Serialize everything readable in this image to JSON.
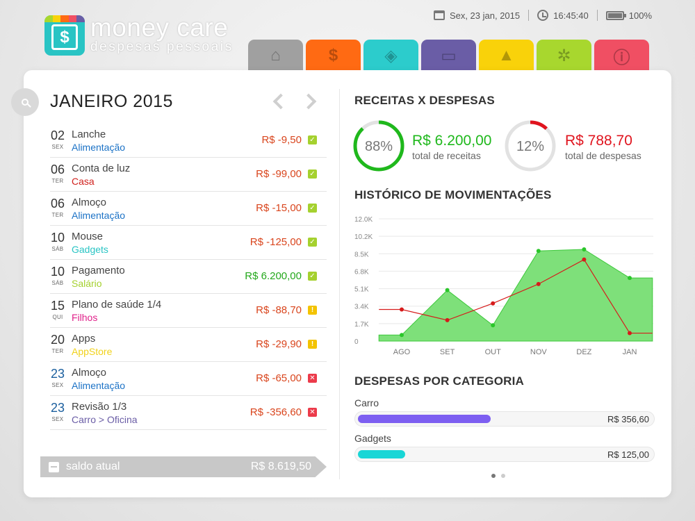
{
  "app": {
    "title": "money care",
    "subtitle": "despesas pessoais",
    "logo_symbol": "$"
  },
  "status": {
    "date": "Sex, 23 jan, 2015",
    "time": "16:45:40",
    "battery": "100%"
  },
  "tabs": [
    {
      "icon": "home-icon",
      "glyph": "⌂",
      "color": "#a0a0a0"
    },
    {
      "icon": "dollar-icon",
      "glyph": "$",
      "color": "#ff6a13"
    },
    {
      "icon": "tag-icon",
      "glyph": "◈",
      "color": "#2ccccc"
    },
    {
      "icon": "archive-icon",
      "glyph": "▭",
      "color": "#6a5da6"
    },
    {
      "icon": "chart-icon",
      "glyph": "▲",
      "color": "#f9d20a"
    },
    {
      "icon": "gear-icon",
      "glyph": "✲",
      "color": "#a8d72e"
    },
    {
      "icon": "info-icon",
      "glyph": "ⓘ",
      "color": "#f04f63"
    }
  ],
  "month": {
    "title": "JANEIRO 2015"
  },
  "transactions": [
    {
      "day": "02",
      "weekday": "SEX",
      "desc": "Lanche",
      "category": "Alimentação",
      "cat_color": "#1b72c6",
      "amount": "R$ -9,50",
      "amt_color": "#d9451d",
      "status": "✓",
      "status_color": "#a5d12f",
      "day_color": "#333"
    },
    {
      "day": "06",
      "weekday": "TER",
      "desc": "Conta de luz",
      "category": "Casa",
      "cat_color": "#d0211d",
      "amount": "R$ -99,00",
      "amt_color": "#d9451d",
      "status": "✓",
      "status_color": "#a5d12f",
      "day_color": "#333"
    },
    {
      "day": "06",
      "weekday": "TER",
      "desc": "Almoço",
      "category": "Alimentação",
      "cat_color": "#1b72c6",
      "amount": "R$ -15,00",
      "amt_color": "#d9451d",
      "status": "✓",
      "status_color": "#a5d12f",
      "day_color": "#333"
    },
    {
      "day": "10",
      "weekday": "SÁB",
      "desc": "Mouse",
      "category": "Gadgets",
      "cat_color": "#29c4c4",
      "amount": "R$ -125,00",
      "amt_color": "#d9451d",
      "status": "✓",
      "status_color": "#a5d12f",
      "day_color": "#333"
    },
    {
      "day": "10",
      "weekday": "SÁB",
      "desc": "Pagamento",
      "category": "Salário",
      "cat_color": "#a5d12f",
      "amount": "R$ 6.200,00",
      "amt_color": "#24a81c",
      "status": "✓",
      "status_color": "#a5d12f",
      "day_color": "#333"
    },
    {
      "day": "15",
      "weekday": "QUI",
      "desc": "Plano de saúde 1/4",
      "category": "Filhos",
      "cat_color": "#e0218a",
      "amount": "R$ -88,70",
      "amt_color": "#d9451d",
      "status": "!",
      "status_color": "#f3c300",
      "day_color": "#333"
    },
    {
      "day": "20",
      "weekday": "TER",
      "desc": "Apps",
      "category": "AppStore",
      "cat_color": "#f1d21b",
      "amount": "R$ -29,90",
      "amt_color": "#d9451d",
      "status": "!",
      "status_color": "#f3c300",
      "day_color": "#333"
    },
    {
      "day": "23",
      "weekday": "SEX",
      "desc": "Almoço",
      "category": "Alimentação",
      "cat_color": "#1b72c6",
      "amount": "R$ -65,00",
      "amt_color": "#d9451d",
      "status": "✕",
      "status_color": "#ec3b4b",
      "day_color": "#1b5f9e"
    },
    {
      "day": "23",
      "weekday": "SEX",
      "desc": "Revisão 1/3",
      "category": "Carro > Oficina",
      "cat_color": "#6a5da6",
      "amount": "R$ -356,60",
      "amt_color": "#d9451d",
      "status": "✕",
      "status_color": "#ec3b4b",
      "day_color": "#1b5f9e"
    }
  ],
  "saldo": {
    "label": "saldo atual",
    "value": "R$ 8.619,50"
  },
  "summary": {
    "title": "RECEITAS X DESPESAS",
    "receitas": {
      "percent_label": "88%",
      "percent": 88,
      "value": "R$ 6.200,00",
      "label": "total de receitas",
      "color": "#1fb81c"
    },
    "despesas": {
      "percent_label": "12%",
      "percent": 12,
      "value": "R$ 788,70",
      "label": "total de despesas",
      "color": "#e0141e"
    }
  },
  "history_title": "HISTÓRICO DE MOVIMENTAÇÕES",
  "chart_data": {
    "type": "area",
    "categories": [
      "AGO",
      "SET",
      "OUT",
      "NOV",
      "DEZ",
      "JAN"
    ],
    "y_ticks": [
      "12.0K",
      "10.2K",
      "8.5K",
      "6.8K",
      "5.1K",
      "3.4K",
      "1.7K",
      "0"
    ],
    "ylim": [
      0,
      12000
    ],
    "series": [
      {
        "color": "#2ac62a",
        "points": [
          [
            -0.5,
            600
          ],
          [
            0,
            600
          ],
          [
            1,
            5000
          ],
          [
            2,
            1550
          ],
          [
            3,
            8850
          ],
          [
            4,
            9000
          ],
          [
            5,
            6200
          ],
          [
            5.5,
            6200
          ]
        ]
      },
      {
        "color": "#d61b1b",
        "points": [
          [
            -0.5,
            3100
          ],
          [
            0,
            3100
          ],
          [
            1,
            2050
          ],
          [
            2,
            3700
          ],
          [
            3,
            5600
          ],
          [
            4,
            8000
          ],
          [
            5,
            780
          ],
          [
            5.5,
            780
          ]
        ]
      }
    ],
    "grid": true
  },
  "categories_title": "DESPESAS POR CATEGORIA",
  "category_bars": [
    {
      "name": "Carro",
      "value": "R$ 356,60",
      "fraction": 0.45,
      "color": "#7d5ff1"
    },
    {
      "name": "Gadgets",
      "value": "R$ 125,00",
      "fraction": 0.16,
      "color": "#19d6d6"
    }
  ],
  "pager": {
    "pages": 2,
    "current": 1
  }
}
